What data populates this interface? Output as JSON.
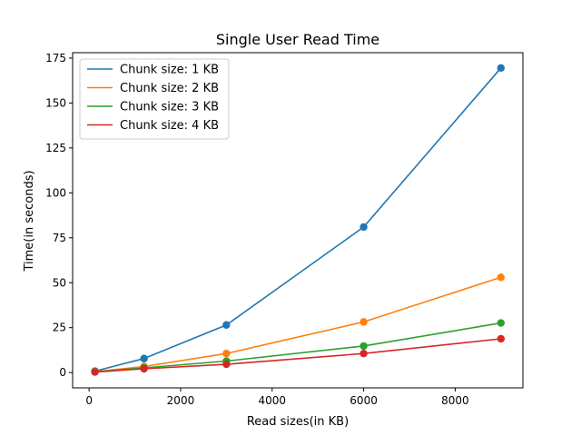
{
  "chart_data": {
    "type": "line",
    "title": "Single User Read Time",
    "xlabel": "Read sizes(in KB)",
    "ylabel": "Time(in seconds)",
    "xlim": [
      -360,
      9480
    ],
    "ylim": [
      -8.5,
      178
    ],
    "xticks": [
      0,
      2000,
      4000,
      6000,
      8000
    ],
    "yticks": [
      0,
      25,
      50,
      75,
      100,
      125,
      150,
      175
    ],
    "legend_position": "top-left",
    "x": [
      128,
      1200,
      3000,
      6000,
      9000
    ],
    "series": [
      {
        "name": "Chunk size: 1 KB",
        "color": "#1f77b4",
        "values": [
          0.8,
          7.8,
          26.5,
          81,
          169.5
        ]
      },
      {
        "name": "Chunk size: 2 KB",
        "color": "#ff7f0e",
        "values": [
          0.5,
          3.4,
          10.6,
          28.2,
          53
        ]
      },
      {
        "name": "Chunk size: 3 KB",
        "color": "#2ca02c",
        "values": [
          0.4,
          2.6,
          6.4,
          14.8,
          27.6
        ]
      },
      {
        "name": "Chunk size: 4 KB",
        "color": "#d62728",
        "values": [
          0.3,
          2.1,
          4.6,
          10.6,
          18.8
        ]
      }
    ]
  }
}
